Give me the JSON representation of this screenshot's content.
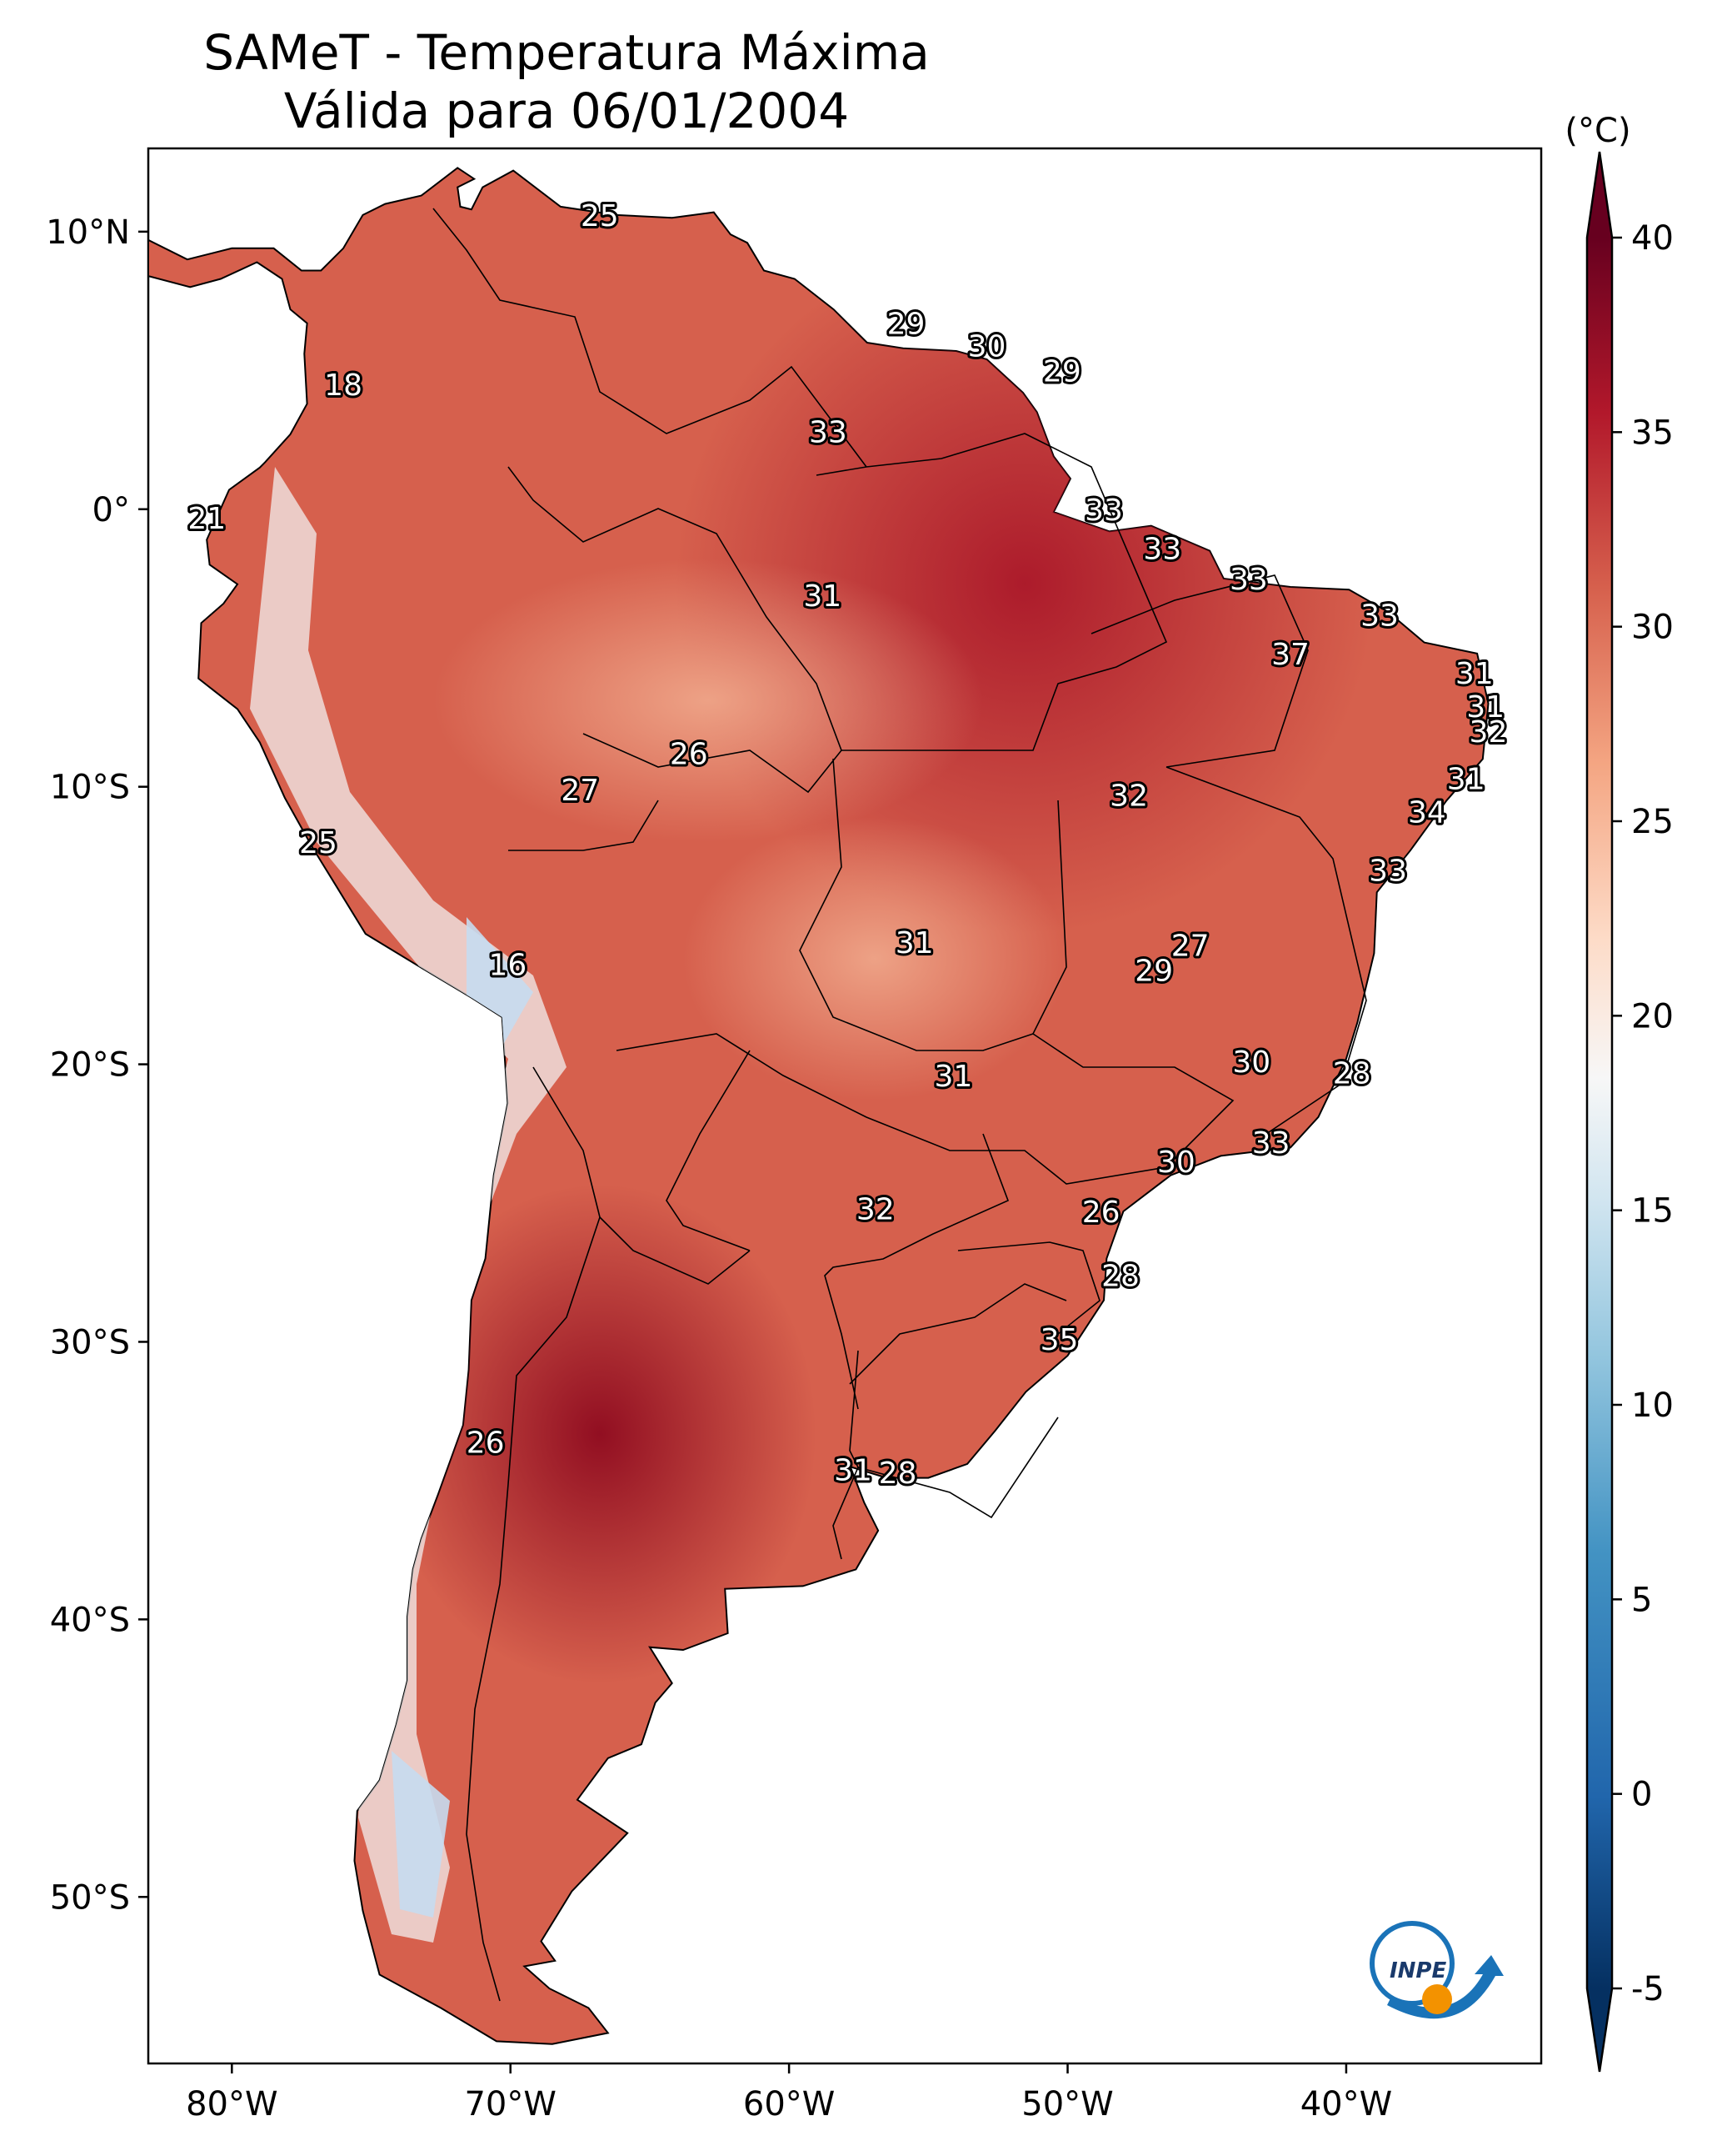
{
  "title": {
    "line1": "SAMeT - Temperatura Máxima",
    "line2": "Válida para 06/01/2004"
  },
  "axes": {
    "lat_ticks": [
      "10°N",
      "0°",
      "10°S",
      "20°S",
      "30°S",
      "40°S",
      "50°S"
    ],
    "lat_values": [
      10,
      0,
      -10,
      -20,
      -30,
      -40,
      -50
    ],
    "lon_ticks": [
      "80°W",
      "70°W",
      "60°W",
      "50°W",
      "40°W"
    ],
    "lon_values": [
      -80,
      -70,
      -60,
      -50,
      -40
    ],
    "lon_range": [
      -83,
      -33
    ],
    "lat_range": [
      -56,
      13
    ]
  },
  "colorbar": {
    "unit": "(°C)",
    "ticks": [
      "40",
      "35",
      "30",
      "25",
      "20",
      "15",
      "10",
      "5",
      "0",
      "-5"
    ],
    "tick_values": [
      40,
      35,
      30,
      25,
      20,
      15,
      10,
      5,
      0,
      -5
    ],
    "range": [
      -5,
      40
    ],
    "colormap": "RdBu_r",
    "extend": "both"
  },
  "station_labels": [
    {
      "v": "25",
      "lon": -66.8,
      "lat": 10.6
    },
    {
      "v": "29",
      "lon": -55.8,
      "lat": 6.7
    },
    {
      "v": "30",
      "lon": -52.9,
      "lat": 5.9
    },
    {
      "v": "29",
      "lon": -50.2,
      "lat": 5.0
    },
    {
      "v": "18",
      "lon": -76.0,
      "lat": 4.5
    },
    {
      "v": "33",
      "lon": -58.6,
      "lat": 2.8
    },
    {
      "v": "21",
      "lon": -80.9,
      "lat": -0.3
    },
    {
      "v": "33",
      "lon": -48.7,
      "lat": -0.0
    },
    {
      "v": "33",
      "lon": -46.6,
      "lat": -1.4
    },
    {
      "v": "33",
      "lon": -43.5,
      "lat": -2.5
    },
    {
      "v": "31",
      "lon": -58.8,
      "lat": -3.1
    },
    {
      "v": "33",
      "lon": -38.8,
      "lat": -3.8
    },
    {
      "v": "37",
      "lon": -42.0,
      "lat": -5.2
    },
    {
      "v": "31",
      "lon": -35.4,
      "lat": -5.9
    },
    {
      "v": "31",
      "lon": -35.0,
      "lat": -7.1
    },
    {
      "v": "32",
      "lon": -34.9,
      "lat": -8.0
    },
    {
      "v": "26",
      "lon": -63.6,
      "lat": -8.8
    },
    {
      "v": "27",
      "lon": -67.5,
      "lat": -10.1
    },
    {
      "v": "31",
      "lon": -35.7,
      "lat": -9.7
    },
    {
      "v": "32",
      "lon": -47.8,
      "lat": -10.3
    },
    {
      "v": "34",
      "lon": -37.1,
      "lat": -10.9
    },
    {
      "v": "25",
      "lon": -76.9,
      "lat": -12.0
    },
    {
      "v": "33",
      "lon": -38.5,
      "lat": -13.0
    },
    {
      "v": "31",
      "lon": -55.5,
      "lat": -15.6
    },
    {
      "v": "27",
      "lon": -45.6,
      "lat": -15.7
    },
    {
      "v": "29",
      "lon": -46.9,
      "lat": -16.6
    },
    {
      "v": "16",
      "lon": -70.1,
      "lat": -16.4
    },
    {
      "v": "30",
      "lon": -43.4,
      "lat": -19.9
    },
    {
      "v": "28",
      "lon": -39.8,
      "lat": -20.3
    },
    {
      "v": "31",
      "lon": -54.1,
      "lat": -20.4
    },
    {
      "v": "33",
      "lon": -42.7,
      "lat": -22.8
    },
    {
      "v": "30",
      "lon": -46.1,
      "lat": -23.5
    },
    {
      "v": "32",
      "lon": -56.9,
      "lat": -25.2
    },
    {
      "v": "26",
      "lon": -48.8,
      "lat": -25.3
    },
    {
      "v": "28",
      "lon": -48.1,
      "lat": -27.6
    },
    {
      "v": "35",
      "lon": -50.3,
      "lat": -29.9
    },
    {
      "v": "26",
      "lon": -70.9,
      "lat": -33.6
    },
    {
      "v": "31",
      "lon": -57.7,
      "lat": -34.6
    },
    {
      "v": "28",
      "lon": -56.1,
      "lat": -34.7
    }
  ],
  "logo": {
    "text": "INPE"
  }
}
